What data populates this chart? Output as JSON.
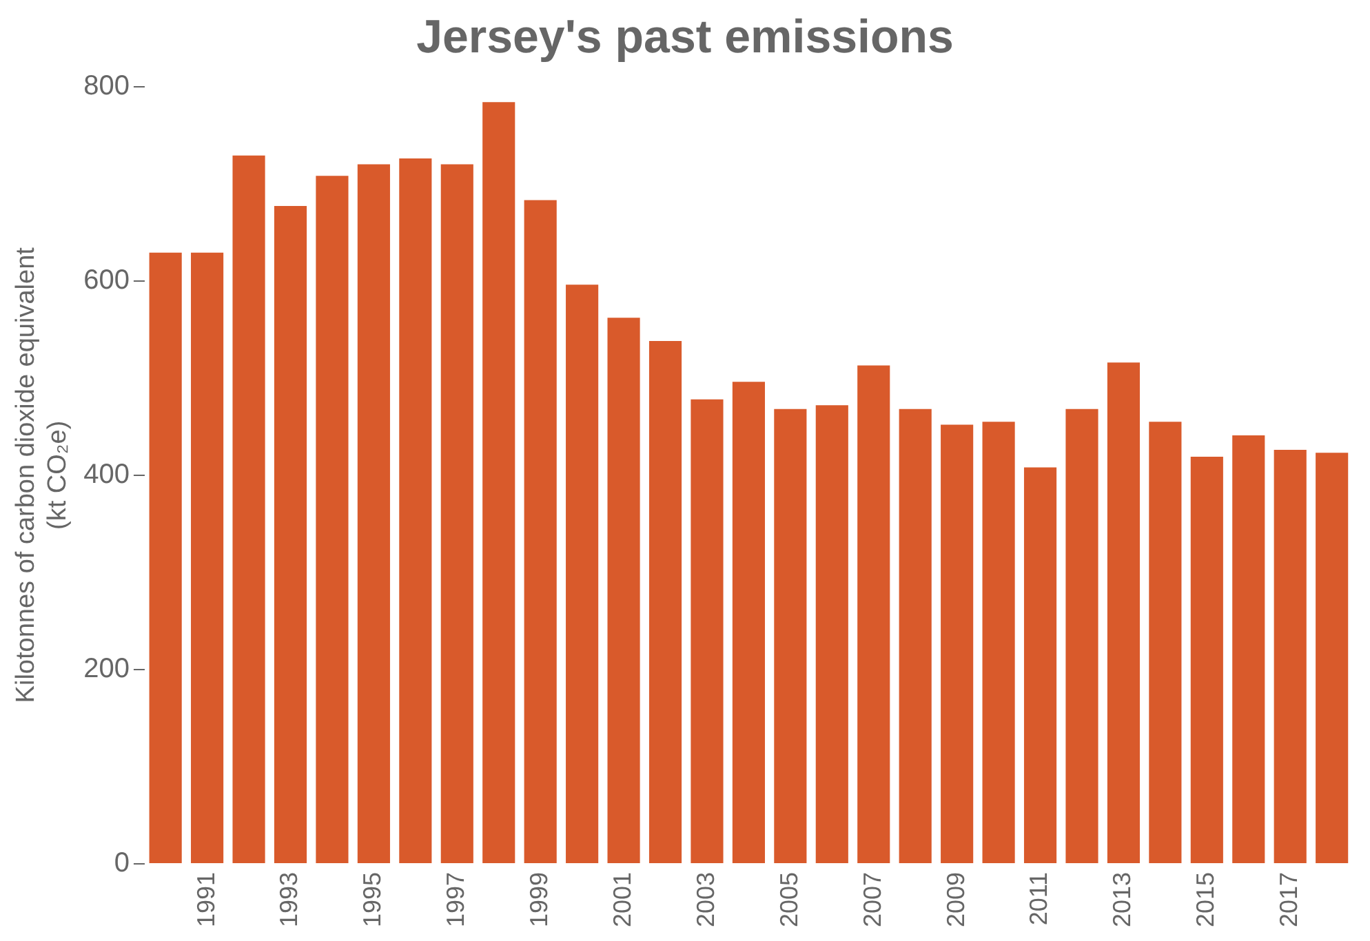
{
  "chart_data": {
    "type": "bar",
    "title": "Jersey's past emissions",
    "ylabel": "Kilotonnes of carbon dioxide equivalent (kt CO₂e)",
    "categories": [
      null,
      "1991",
      null,
      "1993",
      null,
      "1995",
      null,
      "1997",
      null,
      "1999",
      null,
      "2001",
      null,
      "2003",
      null,
      "2005",
      null,
      "2007",
      null,
      "2009",
      null,
      "2011",
      null,
      "2013",
      null,
      "2015",
      null,
      "2017",
      null
    ],
    "values": [
      629,
      629,
      729,
      677,
      708,
      720,
      726,
      720,
      784,
      683,
      596,
      562,
      538,
      478,
      496,
      468,
      472,
      513,
      468,
      452,
      455,
      408,
      468,
      516,
      455,
      419,
      441,
      426,
      423
    ],
    "color": "#d95a2b",
    "ylim": [
      0,
      800
    ],
    "yticks": [
      0,
      200,
      400,
      600,
      800
    ],
    "grid": false,
    "legend": false
  }
}
